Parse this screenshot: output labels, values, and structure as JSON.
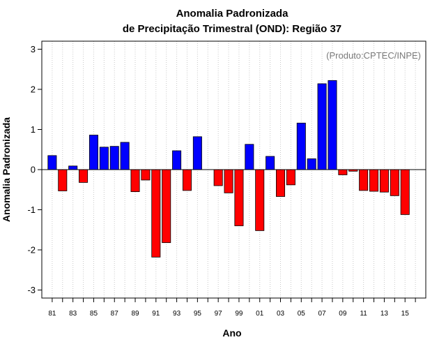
{
  "chart_data": {
    "type": "bar",
    "title": "Anomalia Padronizada",
    "subtitle": "de Precipitação Trimestral (OND): Região 37",
    "xlabel": "Ano",
    "ylabel": "Anomalia Padronizada",
    "annotation": "(Produto:CPTEC/INPE)",
    "ylim": [
      -3.2,
      3.2
    ],
    "yticks": [
      -3,
      -2,
      -1,
      0,
      1,
      2,
      3
    ],
    "ytick_labels": [
      "-3",
      "-2",
      "-1",
      "0",
      "1",
      "2",
      "3"
    ],
    "xticks": [
      1981,
      1983,
      1985,
      1987,
      1989,
      1991,
      1993,
      1995,
      1997,
      1999,
      2001,
      2003,
      2005,
      2007,
      2009,
      2011,
      2013,
      2015
    ],
    "xtick_labels": [
      "81",
      "83",
      "85",
      "87",
      "89",
      "91",
      "93",
      "95",
      "97",
      "99",
      "01",
      "03",
      "05",
      "07",
      "09",
      "11",
      "13",
      "15"
    ],
    "xlim": [
      1980,
      2017
    ],
    "grid": true,
    "positive_color": "#0000ff",
    "negative_color": "#ff0000",
    "categories": [
      1981,
      1982,
      1983,
      1984,
      1985,
      1986,
      1987,
      1988,
      1989,
      1990,
      1991,
      1992,
      1993,
      1994,
      1995,
      1996,
      1997,
      1998,
      1999,
      2000,
      2001,
      2002,
      2003,
      2004,
      2005,
      2006,
      2007,
      2008,
      2009,
      2010,
      2011,
      2012,
      2013,
      2014,
      2015
    ],
    "values": [
      0.35,
      -0.53,
      0.09,
      -0.32,
      0.86,
      0.56,
      0.58,
      0.68,
      -0.55,
      -0.26,
      -2.18,
      -1.82,
      0.47,
      -0.52,
      0.82,
      0.0,
      -0.4,
      -0.58,
      -1.4,
      0.63,
      -1.52,
      0.33,
      -0.67,
      -0.38,
      1.16,
      0.27,
      2.14,
      2.22,
      -0.13,
      -0.04,
      -0.52,
      -0.54,
      -0.56,
      -0.65,
      -1.12
    ]
  }
}
